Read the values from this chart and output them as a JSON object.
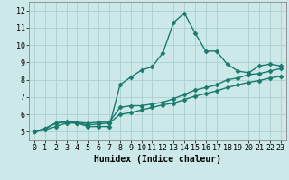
{
  "title": "",
  "xlabel": "Humidex (Indice chaleur)",
  "ylabel": "",
  "bg_color": "#cce8e8",
  "grid_color": "#aacfcf",
  "line_color": "#1a7a6e",
  "xlim": [
    -0.5,
    23.5
  ],
  "ylim": [
    4.5,
    12.5
  ],
  "xticks": [
    0,
    1,
    2,
    3,
    4,
    5,
    6,
    7,
    8,
    9,
    10,
    11,
    12,
    13,
    14,
    15,
    16,
    17,
    18,
    19,
    20,
    21,
    22,
    23
  ],
  "yticks": [
    5,
    6,
    7,
    8,
    9,
    10,
    11,
    12
  ],
  "line1_x": [
    0,
    1,
    2,
    3,
    4,
    5,
    6,
    7,
    8,
    9,
    10,
    11,
    12,
    13,
    14,
    15,
    16,
    17,
    18,
    19,
    20,
    21,
    22,
    23
  ],
  "line1_y": [
    5.0,
    5.2,
    5.5,
    5.55,
    5.5,
    5.3,
    5.3,
    5.3,
    7.7,
    8.15,
    8.55,
    8.75,
    9.55,
    11.3,
    11.85,
    10.7,
    9.65,
    9.65,
    8.9,
    8.5,
    8.4,
    8.8,
    8.9,
    8.8
  ],
  "line2_x": [
    0,
    1,
    2,
    3,
    4,
    5,
    6,
    7,
    8,
    9,
    10,
    11,
    12,
    13,
    14,
    15,
    16,
    17,
    18,
    19,
    20,
    21,
    22,
    23
  ],
  "line2_y": [
    5.0,
    5.15,
    5.5,
    5.6,
    5.55,
    5.5,
    5.55,
    5.55,
    6.4,
    6.5,
    6.5,
    6.6,
    6.7,
    6.9,
    7.15,
    7.4,
    7.55,
    7.7,
    8.0,
    8.1,
    8.3,
    8.35,
    8.5,
    8.65
  ],
  "line3_x": [
    0,
    1,
    2,
    3,
    4,
    5,
    6,
    7,
    8,
    9,
    10,
    11,
    12,
    13,
    14,
    15,
    16,
    17,
    18,
    19,
    20,
    21,
    22,
    23
  ],
  "line3_y": [
    5.0,
    5.1,
    5.3,
    5.5,
    5.5,
    5.4,
    5.45,
    5.5,
    6.0,
    6.1,
    6.25,
    6.4,
    6.55,
    6.65,
    6.85,
    7.05,
    7.2,
    7.35,
    7.55,
    7.7,
    7.85,
    7.95,
    8.1,
    8.2
  ],
  "marker": "D",
  "markersize": 2.5,
  "linewidth": 1.0,
  "xlabel_fontsize": 7,
  "tick_fontsize": 6
}
